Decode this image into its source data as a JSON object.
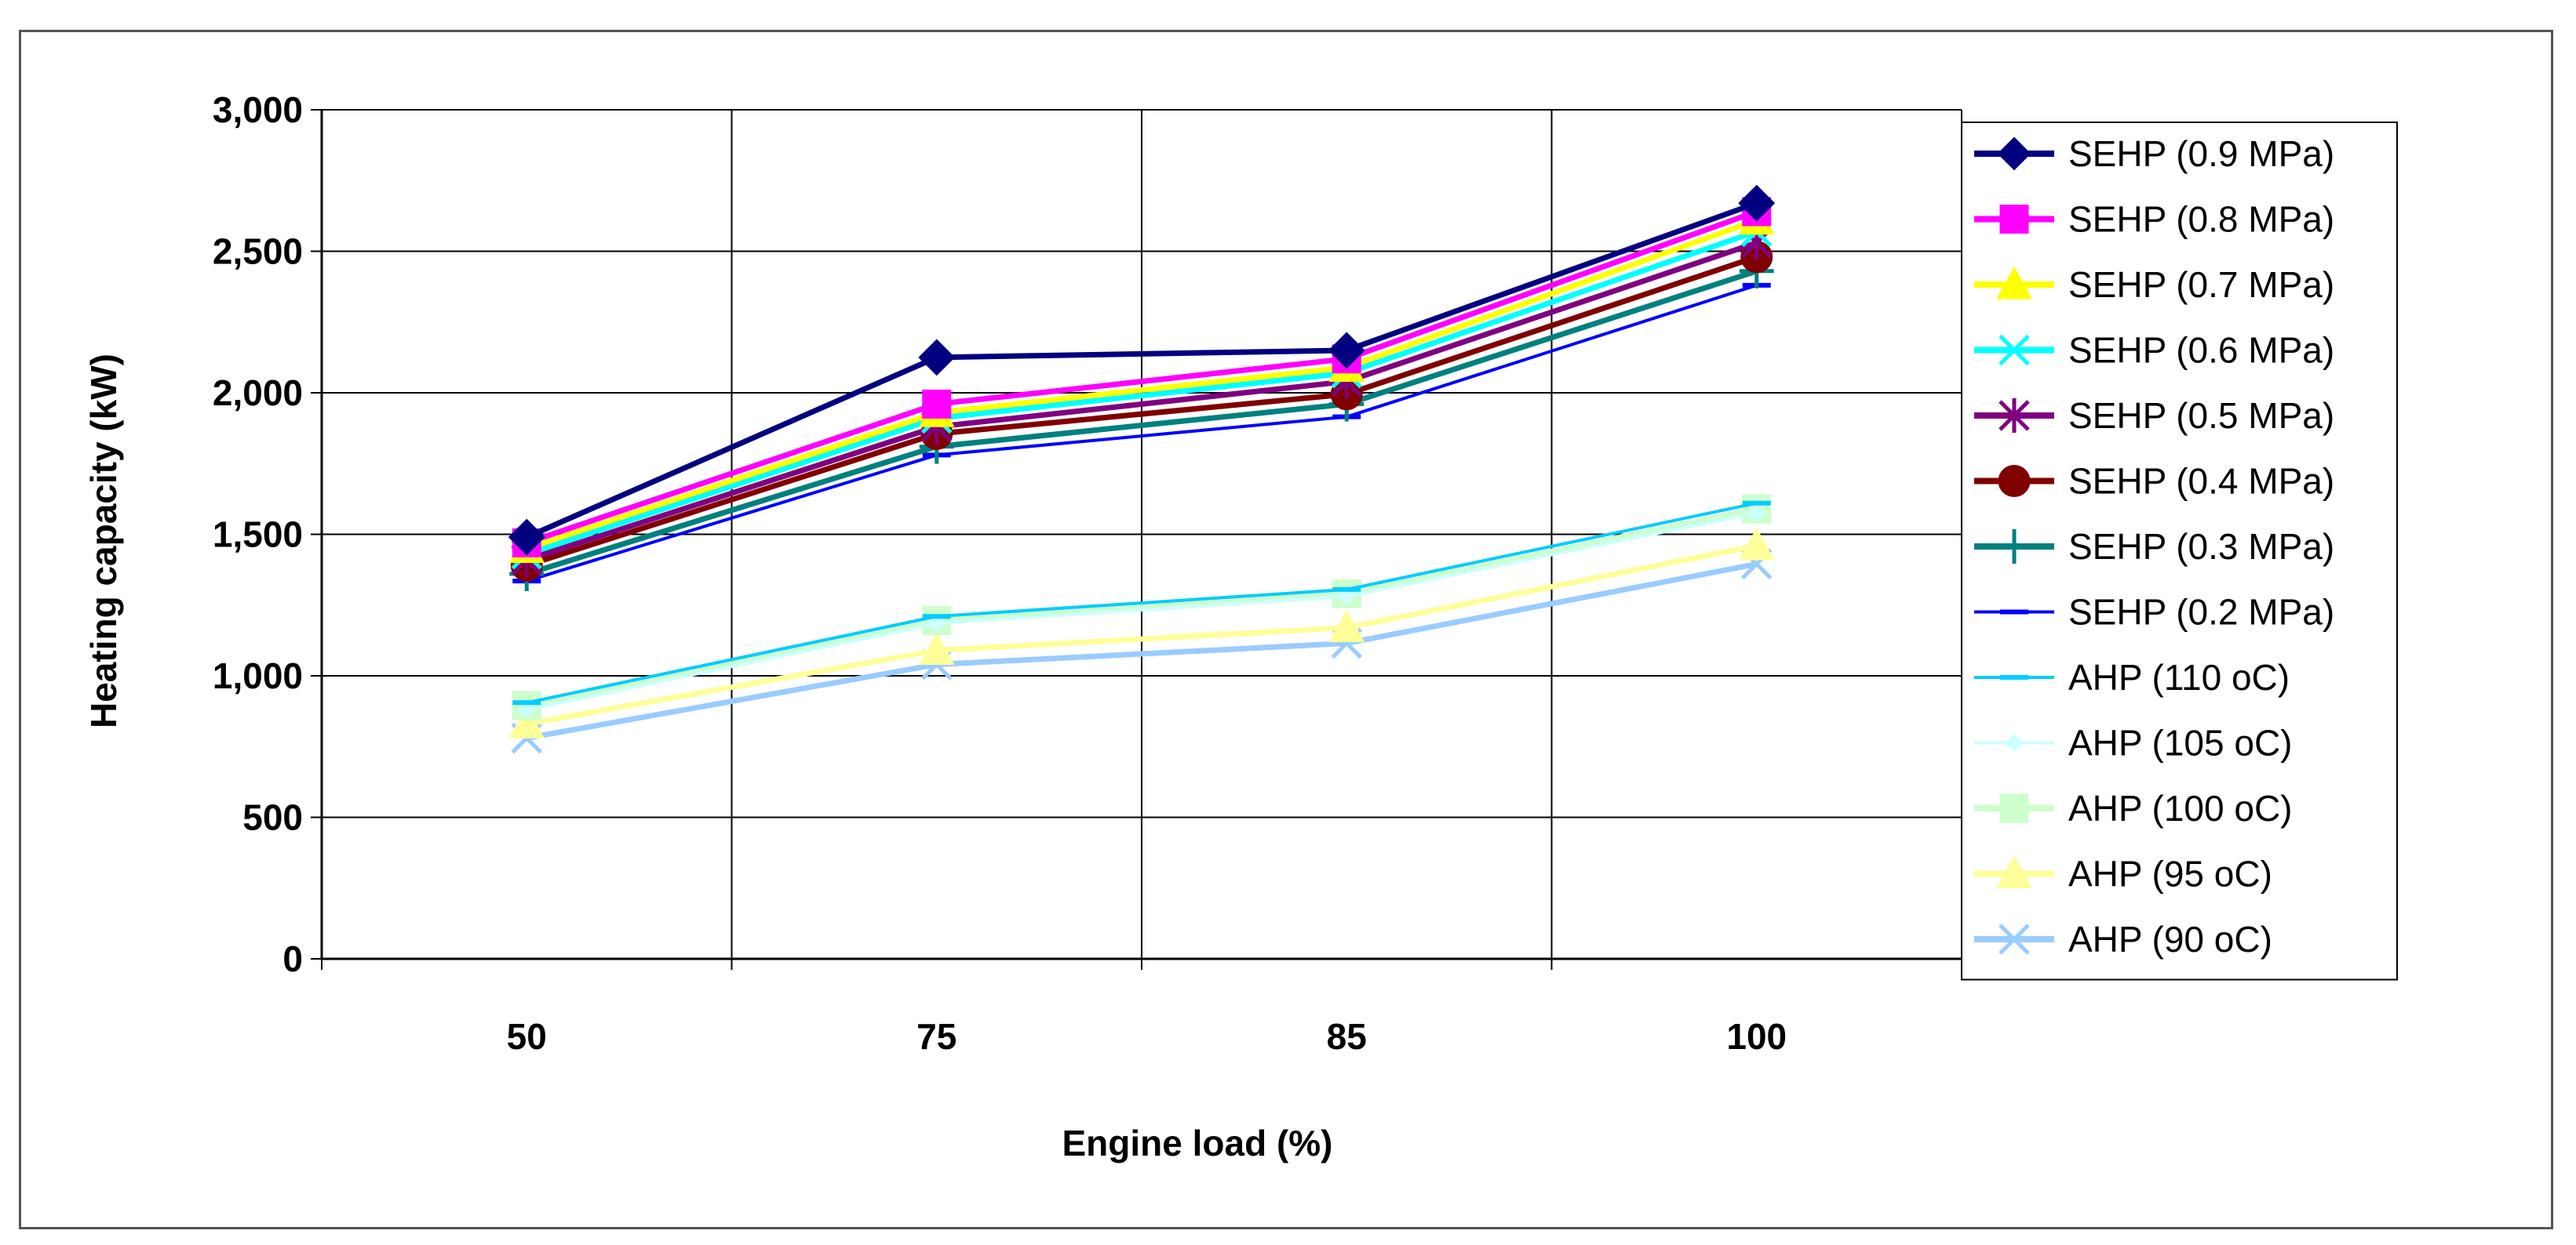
{
  "chart_data": {
    "type": "line",
    "title": "",
    "xlabel": "Engine load (%)",
    "ylabel": "Heating capacity (kW)",
    "categories": [
      "50",
      "75",
      "85",
      "100"
    ],
    "ylim": [
      0,
      3000
    ],
    "yticks": [
      0,
      500,
      1000,
      1500,
      2000,
      2500,
      3000
    ],
    "ytick_labels": [
      "0",
      "500",
      "1,000",
      "1,500",
      "2,000",
      "2,500",
      "3,000"
    ],
    "grid": true,
    "legend_position": "right",
    "series": [
      {
        "name": "SEHP (0.9 MPa)",
        "values": [
          1490,
          2125,
          2150,
          2670
        ],
        "color": "#000080",
        "marker": "diamond"
      },
      {
        "name": "SEHP (0.8 MPa)",
        "values": [
          1470,
          1960,
          2120,
          2640
        ],
        "color": "#FF00FF",
        "marker": "square"
      },
      {
        "name": "SEHP (0.7 MPa)",
        "values": [
          1450,
          1930,
          2090,
          2610
        ],
        "color": "#FFFF00",
        "marker": "triangle"
      },
      {
        "name": "SEHP (0.6 MPa)",
        "values": [
          1430,
          1910,
          2070,
          2570
        ],
        "color": "#00FFFF",
        "marker": "x"
      },
      {
        "name": "SEHP (0.5 MPa)",
        "values": [
          1410,
          1880,
          2040,
          2530
        ],
        "color": "#800080",
        "marker": "star"
      },
      {
        "name": "SEHP (0.4 MPa)",
        "values": [
          1390,
          1855,
          1995,
          2480
        ],
        "color": "#800000",
        "marker": "circle"
      },
      {
        "name": "SEHP (0.3 MPa)",
        "values": [
          1360,
          1810,
          1960,
          2430
        ],
        "color": "#008080",
        "marker": "plus"
      },
      {
        "name": "SEHP (0.2 MPa)",
        "values": [
          1335,
          1780,
          1915,
          2380
        ],
        "color": "#0000FF",
        "marker": "dash"
      },
      {
        "name": "AHP (110 oC)",
        "values": [
          905,
          1210,
          1305,
          1610
        ],
        "color": "#00CCFF",
        "marker": "dash"
      },
      {
        "name": "AHP (105 oC)",
        "values": [
          880,
          1185,
          1280,
          1575
        ],
        "color": "#CCFFFF",
        "marker": "smalldiamond"
      },
      {
        "name": "AHP (100 oC)",
        "values": [
          895,
          1195,
          1290,
          1590
        ],
        "color": "#CCFFCC",
        "marker": "square"
      },
      {
        "name": "AHP (95 oC)",
        "values": [
          830,
          1090,
          1170,
          1460
        ],
        "color": "#FFFF99",
        "marker": "triangle"
      },
      {
        "name": "AHP (90 oC)",
        "values": [
          780,
          1040,
          1115,
          1395
        ],
        "color": "#99CCFF",
        "marker": "x"
      }
    ]
  }
}
